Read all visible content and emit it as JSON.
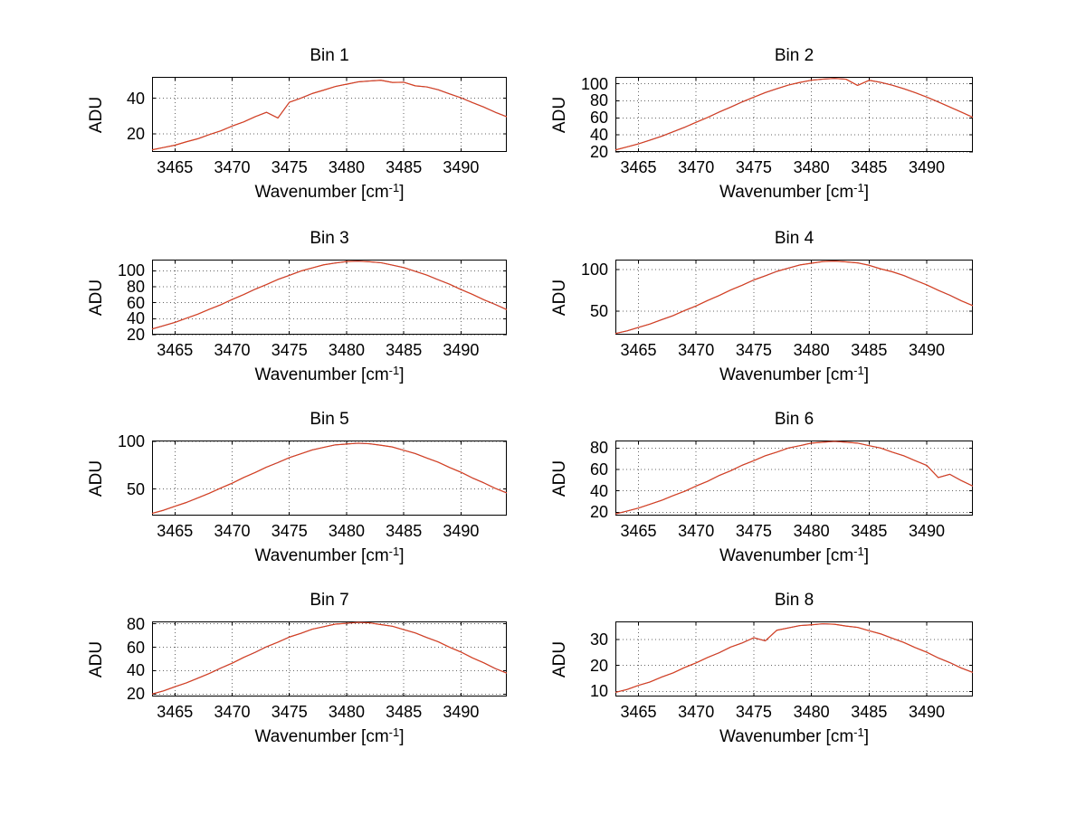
{
  "figure": {
    "background": "#ffffff",
    "line_color": "#d9421e",
    "underlay_color": "#3b3bc8",
    "grid_color": "#666666",
    "axis_color": "#000000",
    "text_color": "#000000"
  },
  "chart_data": {
    "type": "line",
    "x_label": "Wavenumber [cm^-1]",
    "x_label_pre": "Wavenumber [cm",
    "x_label_sup": "-1",
    "x_label_post": "]",
    "y_label": "ADU",
    "xlim": [
      3463,
      3494
    ],
    "xticks": [
      3465,
      3470,
      3475,
      3480,
      3485,
      3490
    ],
    "grid": true,
    "legend": "none",
    "x": [
      3463,
      3464,
      3465,
      3466,
      3467,
      3468,
      3469,
      3470,
      3471,
      3472,
      3473,
      3474,
      3475,
      3476,
      3477,
      3478,
      3479,
      3480,
      3481,
      3482,
      3483,
      3484,
      3485,
      3486,
      3487,
      3488,
      3489,
      3490,
      3491,
      3492,
      3493,
      3494
    ],
    "panels": [
      {
        "title": "Bin 1",
        "ylim": [
          10,
          52
        ],
        "yticks": [
          20,
          40
        ],
        "y": [
          11.2,
          12.5,
          13.8,
          15.7,
          17.4,
          19.7,
          21.8,
          24.5,
          26.8,
          29.7,
          32.2,
          29.0,
          37.8,
          40.1,
          42.7,
          44.6,
          46.6,
          47.9,
          49.2,
          49.7,
          50.1,
          48.9,
          49.0,
          47.0,
          46.4,
          44.8,
          42.5,
          40.3,
          37.6,
          35.1,
          32.2,
          29.7
        ]
      },
      {
        "title": "Bin 2",
        "ylim": [
          20,
          108
        ],
        "yticks": [
          20,
          40,
          60,
          80,
          100
        ],
        "y": [
          22.4,
          25.9,
          29.5,
          33.9,
          38.4,
          43.6,
          48.9,
          54.8,
          60.5,
          66.8,
          72.6,
          78.7,
          84.2,
          89.6,
          94.1,
          98.4,
          101.5,
          104.1,
          105.4,
          106.2,
          105.3,
          98.0,
          104.0,
          101.6,
          98.3,
          94.2,
          89.5,
          84.3,
          78.6,
          72.7,
          66.7,
          60.6
        ]
      },
      {
        "title": "Bin 3",
        "ylim": [
          20,
          114
        ],
        "yticks": [
          20,
          40,
          60,
          80,
          100
        ],
        "y": [
          27.1,
          31.2,
          35.4,
          40.6,
          45.7,
          51.8,
          57.4,
          64.1,
          70.2,
          76.9,
          82.8,
          89.2,
          94.3,
          99.7,
          103.6,
          107.5,
          109.7,
          111.6,
          112.1,
          111.3,
          110.1,
          107.1,
          104.0,
          99.3,
          94.7,
          88.8,
          83.2,
          76.5,
          70.5,
          63.7,
          57.8,
          51.4
        ]
      },
      {
        "title": "Bin 4",
        "ylim": [
          22,
          112
        ],
        "yticks": [
          50,
          100
        ],
        "y": [
          23.4,
          26.5,
          30.7,
          34.8,
          39.9,
          44.8,
          50.9,
          56.5,
          63.0,
          69.0,
          75.6,
          81.3,
          87.6,
          92.6,
          97.9,
          101.8,
          105.6,
          107.7,
          109.7,
          110.2,
          109.3,
          108.1,
          105.2,
          100.9,
          97.5,
          93.0,
          87.2,
          81.7,
          75.2,
          69.3,
          62.6,
          56.8
        ]
      },
      {
        "title": "Bin 5",
        "ylim": [
          22,
          101
        ],
        "yticks": [
          50,
          100
        ],
        "y": [
          24.3,
          27.6,
          31.8,
          35.8,
          40.6,
          45.5,
          51.0,
          56.1,
          62.0,
          67.3,
          73.0,
          77.8,
          83.0,
          87.0,
          91.1,
          93.8,
          96.4,
          97.3,
          98.2,
          97.6,
          96.0,
          94.2,
          90.7,
          87.3,
          82.6,
          78.2,
          72.6,
          67.6,
          61.6,
          56.4,
          50.6,
          45.8
        ]
      },
      {
        "title": "Bin 6",
        "ylim": [
          17,
          87
        ],
        "yticks": [
          20,
          40,
          60,
          80
        ],
        "y": [
          18.5,
          21.2,
          24.0,
          27.6,
          31.2,
          35.6,
          39.6,
          44.6,
          49.0,
          54.4,
          58.8,
          64.0,
          68.2,
          72.8,
          76.2,
          80.0,
          82.2,
          84.6,
          85.4,
          86.2,
          85.4,
          84.6,
          82.2,
          80.0,
          76.2,
          72.8,
          68.2,
          63.8,
          52.5,
          55.5,
          49.6,
          44.5
        ]
      },
      {
        "title": "Bin 7",
        "ylim": [
          18,
          82
        ],
        "yticks": [
          20,
          40,
          60,
          80
        ],
        "y": [
          20.1,
          22.8,
          26.3,
          29.6,
          33.6,
          37.6,
          42.2,
          46.4,
          51.3,
          55.6,
          60.4,
          64.3,
          68.7,
          71.8,
          75.4,
          77.5,
          79.7,
          80.4,
          81.2,
          80.8,
          79.3,
          77.9,
          75.0,
          72.2,
          68.3,
          64.7,
          60.0,
          55.9,
          50.9,
          46.7,
          41.8,
          37.9
        ]
      },
      {
        "title": "Bin 8",
        "ylim": [
          8,
          37
        ],
        "yticks": [
          10,
          20,
          30
        ],
        "y": [
          9.6,
          10.7,
          12.3,
          13.6,
          15.5,
          17.1,
          19.2,
          21.0,
          23.1,
          24.9,
          27.1,
          28.7,
          30.7,
          29.5,
          33.6,
          34.5,
          35.4,
          35.7,
          36.1,
          35.9,
          35.2,
          34.7,
          33.4,
          32.2,
          30.5,
          28.9,
          26.9,
          25.1,
          22.9,
          21.1,
          19.0,
          17.3
        ]
      }
    ]
  }
}
